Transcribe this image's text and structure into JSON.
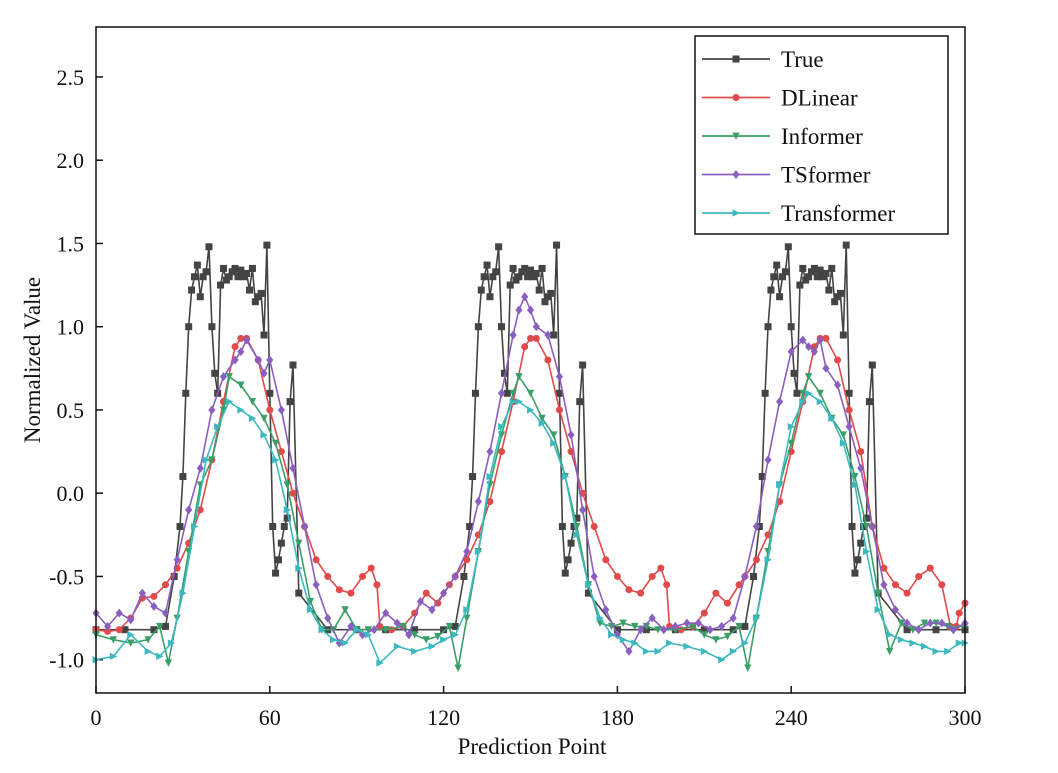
{
  "chart_data": {
    "type": "line",
    "title": "",
    "xlabel": "Prediction Point",
    "ylabel": "Normalized Value",
    "xlim": [
      0,
      300
    ],
    "ylim": [
      -1.2,
      2.8
    ],
    "xticks": [
      0,
      60,
      120,
      180,
      240,
      300
    ],
    "yticks": [
      -1.0,
      -0.5,
      0.0,
      0.5,
      1.0,
      1.5,
      2.0,
      2.5
    ],
    "xtick_labels": [
      "0",
      "60",
      "120",
      "180",
      "240",
      "300"
    ],
    "ytick_labels": [
      "-1.0",
      "-0.5",
      "0.0",
      "0.5",
      "1.0",
      "1.5",
      "2.0",
      "2.5"
    ],
    "grid": false,
    "legend_position": "top-right",
    "series": [
      {
        "name": "True",
        "color": "#444444",
        "marker": "square",
        "x": [
          0,
          10,
          20,
          24,
          27,
          29,
          30,
          31,
          32,
          33,
          34,
          35,
          36,
          37,
          38,
          39,
          40,
          41,
          42,
          43,
          44,
          45,
          46,
          47,
          48,
          49,
          50,
          51,
          52,
          53,
          54,
          55,
          56,
          57,
          58,
          59,
          60,
          61,
          62,
          63,
          64,
          65,
          66,
          67,
          68,
          70,
          80,
          90,
          100,
          110,
          120,
          124,
          127,
          129,
          130,
          131,
          132,
          133,
          134,
          135,
          136,
          137,
          138,
          139,
          140,
          141,
          142,
          143,
          144,
          145,
          146,
          147,
          148,
          149,
          150,
          151,
          152,
          153,
          154,
          155,
          156,
          157,
          158,
          159,
          160,
          161,
          162,
          163,
          164,
          165,
          166,
          167,
          168,
          170,
          180,
          190,
          200,
          210,
          220,
          224,
          227,
          229,
          230,
          231,
          232,
          233,
          234,
          235,
          236,
          237,
          238,
          239,
          240,
          241,
          242,
          243,
          244,
          245,
          246,
          247,
          248,
          249,
          250,
          251,
          252,
          253,
          254,
          255,
          256,
          257,
          258,
          259,
          260,
          261,
          262,
          263,
          264,
          265,
          266,
          267,
          268,
          270,
          280,
          290,
          300
        ],
        "y": [
          -0.82,
          -0.82,
          -0.82,
          -0.8,
          -0.5,
          -0.2,
          0.1,
          0.6,
          1.0,
          1.22,
          1.3,
          1.37,
          1.18,
          1.3,
          1.33,
          1.48,
          1.0,
          0.72,
          0.6,
          1.25,
          1.35,
          1.28,
          1.3,
          1.33,
          1.35,
          1.3,
          1.34,
          1.3,
          1.32,
          1.22,
          1.35,
          1.15,
          1.18,
          1.2,
          0.95,
          1.49,
          0.6,
          -0.2,
          -0.48,
          -0.4,
          -0.3,
          -0.2,
          -0.15,
          0.55,
          0.77,
          -0.6,
          -0.82,
          -0.82,
          -0.82,
          -0.82,
          -0.82,
          -0.8,
          -0.5,
          -0.2,
          0.1,
          0.6,
          1.0,
          1.22,
          1.3,
          1.37,
          1.18,
          1.3,
          1.33,
          1.48,
          1.0,
          0.72,
          0.6,
          1.25,
          1.35,
          1.28,
          1.3,
          1.33,
          1.35,
          1.3,
          1.34,
          1.3,
          1.32,
          1.22,
          1.35,
          1.15,
          1.18,
          1.2,
          0.95,
          1.49,
          0.6,
          -0.2,
          -0.48,
          -0.4,
          -0.3,
          -0.2,
          -0.15,
          0.55,
          0.77,
          -0.6,
          -0.82,
          -0.82,
          -0.82,
          -0.82,
          -0.82,
          -0.8,
          -0.5,
          -0.2,
          0.1,
          0.6,
          1.0,
          1.22,
          1.3,
          1.37,
          1.18,
          1.3,
          1.33,
          1.48,
          1.0,
          0.72,
          0.6,
          1.25,
          1.35,
          1.28,
          1.3,
          1.33,
          1.35,
          1.3,
          1.34,
          1.3,
          1.32,
          1.22,
          1.35,
          1.15,
          1.18,
          1.2,
          0.95,
          1.49,
          0.6,
          -0.2,
          -0.48,
          -0.4,
          -0.3,
          -0.2,
          -0.15,
          0.55,
          0.77,
          -0.6,
          -0.82,
          -0.82,
          -0.82
        ]
      },
      {
        "name": "DLinear",
        "color": "#e04a4a",
        "marker": "circle",
        "x": [
          0,
          4,
          8,
          12,
          16,
          20,
          24,
          28,
          32,
          36,
          40,
          44,
          48,
          50,
          52,
          56,
          60,
          64,
          68,
          72,
          76,
          80,
          84,
          88,
          92,
          95,
          97,
          98,
          102,
          106,
          110,
          114,
          118,
          122,
          124,
          128,
          132,
          136,
          140,
          144,
          148,
          150,
          152,
          156,
          160,
          164,
          168,
          172,
          176,
          180,
          184,
          188,
          192,
          195,
          197,
          198,
          202,
          206,
          210,
          214,
          218,
          222,
          224,
          228,
          232,
          236,
          240,
          244,
          248,
          250,
          252,
          256,
          260,
          264,
          268,
          272,
          276,
          280,
          284,
          288,
          292,
          295,
          297,
          298,
          300
        ],
        "y": [
          -0.82,
          -0.83,
          -0.82,
          -0.75,
          -0.63,
          -0.62,
          -0.55,
          -0.45,
          -0.3,
          -0.1,
          0.2,
          0.55,
          0.88,
          0.93,
          0.93,
          0.8,
          0.5,
          0.25,
          0.0,
          -0.2,
          -0.4,
          -0.5,
          -0.58,
          -0.6,
          -0.5,
          -0.45,
          -0.55,
          -0.8,
          -0.82,
          -0.8,
          -0.72,
          -0.6,
          -0.66,
          -0.55,
          -0.5,
          -0.4,
          -0.25,
          -0.05,
          0.25,
          0.55,
          0.88,
          0.93,
          0.93,
          0.8,
          0.5,
          0.25,
          0.0,
          -0.2,
          -0.4,
          -0.5,
          -0.58,
          -0.6,
          -0.5,
          -0.45,
          -0.55,
          -0.8,
          -0.82,
          -0.8,
          -0.72,
          -0.6,
          -0.66,
          -0.55,
          -0.5,
          -0.4,
          -0.25,
          -0.05,
          0.25,
          0.55,
          0.88,
          0.93,
          0.93,
          0.8,
          0.5,
          0.25,
          -0.2,
          -0.45,
          -0.55,
          -0.6,
          -0.5,
          -0.45,
          -0.55,
          -0.8,
          -0.8,
          -0.72,
          -0.66
        ]
      },
      {
        "name": "Informer",
        "color": "#3a9e68",
        "marker": "triangle-down",
        "x": [
          0,
          6,
          12,
          18,
          22,
          25,
          28,
          32,
          36,
          40,
          44,
          46,
          50,
          54,
          58,
          62,
          66,
          70,
          74,
          78,
          82,
          86,
          90,
          94,
          100,
          106,
          110,
          114,
          118,
          122,
          125,
          128,
          132,
          136,
          140,
          144,
          146,
          150,
          154,
          158,
          162,
          166,
          170,
          174,
          178,
          182,
          186,
          190,
          194,
          200,
          206,
          210,
          214,
          218,
          222,
          225,
          228,
          232,
          236,
          240,
          244,
          246,
          250,
          254,
          258,
          262,
          266,
          270,
          274,
          278,
          282,
          286,
          290,
          294,
          300
        ],
        "y": [
          -0.85,
          -0.88,
          -0.9,
          -0.88,
          -0.8,
          -1.02,
          -0.75,
          -0.35,
          0.05,
          0.2,
          0.5,
          0.7,
          0.65,
          0.55,
          0.45,
          0.3,
          0.05,
          -0.3,
          -0.65,
          -0.82,
          -0.82,
          -0.7,
          -0.82,
          -0.82,
          -0.82,
          -0.8,
          -0.85,
          -0.88,
          -0.86,
          -0.8,
          -1.05,
          -0.75,
          -0.35,
          0.05,
          0.35,
          0.6,
          0.7,
          0.6,
          0.45,
          0.35,
          0.1,
          -0.2,
          -0.55,
          -0.78,
          -0.8,
          -0.78,
          -0.8,
          -0.8,
          -0.82,
          -0.82,
          -0.8,
          -0.85,
          -0.88,
          -0.86,
          -0.8,
          -1.05,
          -0.75,
          -0.35,
          0.05,
          0.3,
          0.6,
          0.7,
          0.6,
          0.45,
          0.35,
          0.1,
          -0.2,
          -0.6,
          -0.95,
          -0.78,
          -0.82,
          -0.78,
          -0.78,
          -0.8,
          -0.8
        ]
      },
      {
        "name": "TSformer",
        "color": "#8a5fbf",
        "marker": "diamond",
        "x": [
          0,
          4,
          8,
          12,
          16,
          20,
          24,
          28,
          32,
          36,
          40,
          44,
          48,
          50,
          52,
          56,
          58,
          60,
          64,
          68,
          72,
          76,
          80,
          84,
          88,
          92,
          96,
          100,
          104,
          108,
          112,
          116,
          120,
          124,
          128,
          132,
          136,
          140,
          144,
          146,
          148,
          150,
          152,
          156,
          160,
          164,
          168,
          172,
          176,
          180,
          184,
          188,
          192,
          196,
          200,
          204,
          208,
          212,
          216,
          220,
          224,
          228,
          232,
          236,
          240,
          244,
          246,
          248,
          250,
          252,
          256,
          260,
          264,
          268,
          272,
          276,
          280,
          284,
          288,
          292,
          296,
          300
        ],
        "y": [
          -0.72,
          -0.8,
          -0.72,
          -0.76,
          -0.6,
          -0.68,
          -0.72,
          -0.4,
          -0.1,
          0.15,
          0.5,
          0.7,
          0.8,
          0.85,
          0.92,
          0.8,
          0.72,
          0.8,
          0.5,
          0.15,
          -0.2,
          -0.55,
          -0.75,
          -0.9,
          -0.8,
          -0.85,
          -0.82,
          -0.72,
          -0.78,
          -0.85,
          -0.65,
          -0.7,
          -0.6,
          -0.5,
          -0.35,
          -0.05,
          0.25,
          0.6,
          0.95,
          1.1,
          1.18,
          1.1,
          1.0,
          0.95,
          0.7,
          0.35,
          -0.1,
          -0.5,
          -0.7,
          -0.85,
          -0.95,
          -0.82,
          -0.75,
          -0.82,
          -0.8,
          -0.78,
          -0.78,
          -0.82,
          -0.8,
          -0.75,
          -0.5,
          -0.2,
          0.2,
          0.55,
          0.85,
          0.92,
          0.88,
          0.85,
          0.92,
          0.75,
          0.65,
          0.4,
          0.15,
          -0.2,
          -0.55,
          -0.7,
          -0.78,
          -0.82,
          -0.78,
          -0.78,
          -0.82,
          -0.78
        ]
      },
      {
        "name": "Transformer",
        "color": "#3cb9c0",
        "marker": "triangle-right",
        "x": [
          0,
          6,
          12,
          18,
          22,
          26,
          30,
          34,
          38,
          42,
          46,
          50,
          54,
          58,
          62,
          66,
          70,
          74,
          78,
          82,
          86,
          90,
          94,
          98,
          104,
          110,
          116,
          120,
          124,
          128,
          132,
          136,
          140,
          144,
          146,
          150,
          154,
          158,
          162,
          166,
          170,
          174,
          178,
          182,
          186,
          190,
          194,
          198,
          204,
          210,
          216,
          220,
          224,
          228,
          232,
          236,
          240,
          244,
          246,
          250,
          254,
          258,
          262,
          266,
          270,
          274,
          278,
          282,
          286,
          290,
          294,
          298,
          300
        ],
        "y": [
          -1.0,
          -0.98,
          -0.85,
          -0.95,
          -0.98,
          -0.9,
          -0.6,
          -0.2,
          0.2,
          0.4,
          0.55,
          0.5,
          0.45,
          0.35,
          0.2,
          -0.1,
          -0.45,
          -0.7,
          -0.82,
          -0.88,
          -0.9,
          -0.82,
          -0.85,
          -1.02,
          -0.92,
          -0.95,
          -0.92,
          -0.88,
          -0.85,
          -0.7,
          -0.35,
          0.1,
          0.4,
          0.55,
          0.55,
          0.5,
          0.42,
          0.3,
          0.1,
          -0.25,
          -0.55,
          -0.75,
          -0.85,
          -0.88,
          -0.9,
          -0.95,
          -0.95,
          -0.9,
          -0.92,
          -0.95,
          -1.0,
          -0.95,
          -0.9,
          -0.75,
          -0.4,
          0.05,
          0.4,
          0.55,
          0.6,
          0.55,
          0.45,
          0.3,
          0.05,
          -0.35,
          -0.7,
          -0.85,
          -0.88,
          -0.9,
          -0.92,
          -0.95,
          -0.95,
          -0.9,
          -0.9
        ]
      }
    ]
  }
}
